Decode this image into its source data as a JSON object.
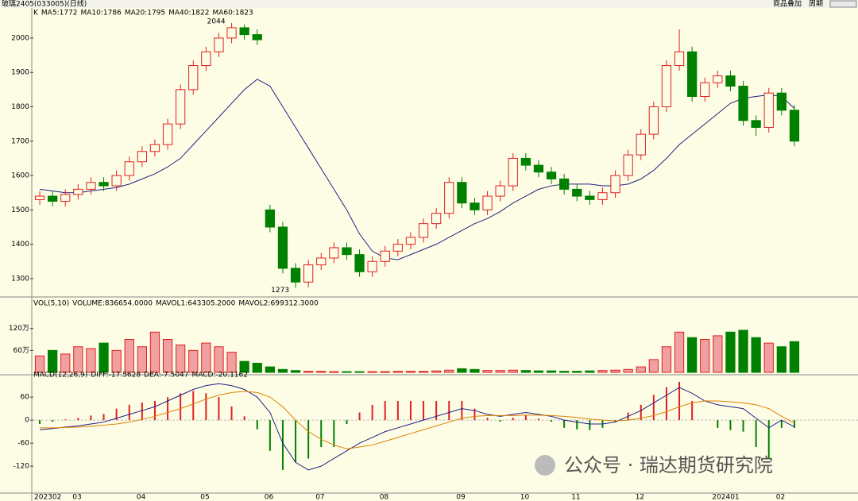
{
  "header": {
    "title": "玻璃2405(033005)(日线)",
    "buttons": [
      "商品叠加",
      "周期"
    ]
  },
  "watermark": "公众号 · 瑞达期货研究院",
  "chart_data": [
    {
      "type": "candlestick",
      "indicator_labels": [
        {
          "text": "K",
          "color": "#000000"
        },
        {
          "text": "MA5:1772",
          "color": "#000000"
        },
        {
          "text": "MA10:1786",
          "color": "#e08000"
        },
        {
          "text": "MA20:1795",
          "color": "#202080"
        },
        {
          "text": "MA40:1822",
          "color": "#2020e0"
        },
        {
          "text": "MA60:1823",
          "color": "#e080e0"
        }
      ],
      "open": [
        1530,
        1540,
        1525,
        1545,
        1560,
        1580,
        1570,
        1600,
        1640,
        1670,
        1690,
        1750,
        1850,
        1920,
        1960,
        2000,
        2030,
        2010,
        1500,
        1450,
        1330,
        1290,
        1340,
        1360,
        1390,
        1370,
        1320,
        1350,
        1380,
        1400,
        1420,
        1460,
        1490,
        1580,
        1520,
        1500,
        1540,
        1570,
        1650,
        1630,
        1610,
        1590,
        1560,
        1540,
        1530,
        1550,
        1600,
        1660,
        1720,
        1800,
        1920,
        1960,
        1830,
        1870,
        1890,
        1860,
        1760,
        1740,
        1840,
        1790
      ],
      "high": [
        1555,
        1555,
        1560,
        1575,
        1595,
        1595,
        1615,
        1655,
        1685,
        1705,
        1765,
        1865,
        1935,
        1975,
        2015,
        2044,
        2040,
        2025,
        1515,
        1465,
        1345,
        1355,
        1375,
        1405,
        1405,
        1385,
        1365,
        1395,
        1415,
        1435,
        1475,
        1505,
        1595,
        1595,
        1535,
        1555,
        1585,
        1665,
        1665,
        1645,
        1625,
        1605,
        1575,
        1555,
        1565,
        1615,
        1675,
        1735,
        1815,
        1935,
        2025,
        1975,
        1885,
        1905,
        1905,
        1875,
        1775,
        1855,
        1855,
        1805
      ],
      "low": [
        1515,
        1510,
        1510,
        1530,
        1545,
        1555,
        1555,
        1585,
        1625,
        1655,
        1675,
        1735,
        1835,
        1905,
        1945,
        1985,
        1995,
        1980,
        1435,
        1315,
        1273,
        1275,
        1325,
        1345,
        1355,
        1305,
        1305,
        1335,
        1365,
        1385,
        1405,
        1445,
        1475,
        1505,
        1485,
        1485,
        1525,
        1555,
        1615,
        1595,
        1575,
        1545,
        1525,
        1515,
        1515,
        1535,
        1585,
        1645,
        1705,
        1785,
        1905,
        1815,
        1815,
        1855,
        1845,
        1745,
        1715,
        1725,
        1775,
        1685
      ],
      "close": [
        1540,
        1525,
        1545,
        1560,
        1580,
        1570,
        1600,
        1640,
        1670,
        1690,
        1750,
        1850,
        1920,
        1960,
        2000,
        2030,
        2010,
        1995,
        1450,
        1330,
        1290,
        1340,
        1360,
        1390,
        1370,
        1320,
        1350,
        1380,
        1400,
        1420,
        1460,
        1490,
        1580,
        1520,
        1500,
        1540,
        1570,
        1650,
        1630,
        1610,
        1590,
        1560,
        1540,
        1530,
        1550,
        1600,
        1660,
        1720,
        1800,
        1920,
        1960,
        1830,
        1870,
        1890,
        1860,
        1760,
        1740,
        1840,
        1790,
        1700
      ],
      "up_color": "#e02020",
      "down_color": "#008000",
      "lines": [
        {
          "color": "#202080",
          "values": [
            1560,
            1555,
            1550,
            1550,
            1555,
            1560,
            1565,
            1575,
            1590,
            1605,
            1625,
            1650,
            1690,
            1730,
            1770,
            1810,
            1850,
            1880,
            1860,
            1800,
            1740,
            1680,
            1620,
            1560,
            1500,
            1430,
            1380,
            1360,
            1355,
            1370,
            1385,
            1400,
            1420,
            1440,
            1460,
            1475,
            1495,
            1520,
            1540,
            1560,
            1570,
            1575,
            1575,
            1575,
            1570,
            1570,
            1575,
            1590,
            1615,
            1650,
            1690,
            1720,
            1750,
            1780,
            1810,
            1825,
            1830,
            1835,
            1830,
            1795
          ]
        }
      ],
      "annotations": [
        "2044",
        "1273"
      ],
      "ylim": [
        1249,
        2083
      ],
      "yticks": [
        1300,
        1400,
        1500,
        1600,
        1700,
        1800,
        1900,
        2000
      ]
    },
    {
      "type": "bar",
      "indicator_labels": [
        {
          "text": "VOL(5,10)",
          "color": "#000000"
        },
        {
          "text": "VOLUME:836654.0000",
          "color": "#000000"
        },
        {
          "text": "MAVOL1:643305.2000",
          "color": "#202080"
        },
        {
          "text": "MAVOL2:699312.3000",
          "color": "#e08000"
        }
      ],
      "values": [
        45,
        60,
        50,
        70,
        65,
        80,
        60,
        90,
        70,
        110,
        90,
        75,
        60,
        80,
        70,
        55,
        30,
        25,
        15,
        8,
        5,
        3,
        3,
        2,
        2,
        2,
        2,
        2,
        3,
        3,
        3,
        4,
        6,
        10,
        8,
        5,
        5,
        6,
        5,
        4,
        4,
        3,
        3,
        4,
        5,
        6,
        8,
        15,
        35,
        70,
        110,
        95,
        90,
        100,
        110,
        115,
        95,
        80,
        70,
        84
      ],
      "ylim": [
        0,
        180
      ],
      "yticks": [
        {
          "value": 60,
          "label": "60万"
        },
        {
          "value": 120,
          "label": "120万"
        }
      ]
    },
    {
      "type": "macd",
      "indicator_labels": [
        {
          "text": "MACD(12,26,9)",
          "color": "#000000"
        },
        {
          "text": "DIFF:-17.5628",
          "color": "#202080"
        },
        {
          "text": "DEA:-7.5047",
          "color": "#e08000"
        },
        {
          "text": "MACD:-20.1162",
          "color": "#000000"
        }
      ],
      "categories": [
        "202302",
        null,
        null,
        "03",
        null,
        null,
        null,
        null,
        "04",
        null,
        null,
        null,
        null,
        "05",
        null,
        null,
        null,
        null,
        "06",
        null,
        null,
        null,
        "07",
        null,
        null,
        null,
        null,
        "08",
        null,
        null,
        null,
        null,
        null,
        "09",
        null,
        null,
        null,
        null,
        "10",
        null,
        null,
        null,
        "11",
        null,
        null,
        null,
        null,
        "12",
        null,
        null,
        null,
        null,
        null,
        "202401",
        null,
        null,
        null,
        null,
        "02",
        null
      ],
      "histogram": [
        -10,
        -4,
        2,
        6,
        12,
        16,
        30,
        40,
        46,
        50,
        60,
        70,
        76,
        70,
        60,
        36,
        10,
        -24,
        -80,
        -130,
        -110,
        -100,
        -70,
        -70,
        -10,
        20,
        40,
        50,
        50,
        50,
        50,
        50,
        50,
        50,
        30,
        6,
        -4,
        6,
        14,
        4,
        -4,
        -20,
        -24,
        -26,
        -20,
        -6,
        20,
        40,
        66,
        86,
        100,
        50,
        0,
        -20,
        -26,
        -30,
        -70,
        -100,
        -20,
        -20.1162
      ],
      "diff": [
        -25,
        -22,
        -18,
        -15,
        -10,
        -5,
        5,
        15,
        25,
        35,
        50,
        65,
        80,
        90,
        95,
        90,
        80,
        60,
        20,
        -60,
        -110,
        -130,
        -120,
        -100,
        -80,
        -60,
        -45,
        -30,
        -20,
        -10,
        0,
        10,
        20,
        30,
        25,
        15,
        10,
        15,
        20,
        15,
        10,
        0,
        -5,
        -10,
        -10,
        -5,
        10,
        25,
        45,
        65,
        85,
        70,
        50,
        40,
        35,
        30,
        5,
        -20,
        0,
        -17.5628
      ],
      "dea": [
        -20,
        -20,
        -19,
        -18,
        -16,
        -13,
        -10,
        -5,
        2,
        10,
        20,
        30,
        42,
        55,
        65,
        72,
        75,
        72,
        60,
        35,
        0,
        -30,
        -50,
        -65,
        -75,
        -70,
        -65,
        -55,
        -45,
        -35,
        -25,
        -15,
        -5,
        5,
        10,
        12,
        12,
        12,
        13,
        13,
        12,
        10,
        7,
        3,
        0,
        -2,
        0,
        5,
        12,
        22,
        35,
        45,
        50,
        50,
        48,
        45,
        40,
        30,
        10,
        -7.5047
      ],
      "diff_color": "#202080",
      "dea_color": "#e08000",
      "up_color": "#e02020",
      "down_color": "#008000",
      "ylim": [
        -188,
        110
      ],
      "yticks": [
        60,
        0,
        -60,
        -120
      ]
    }
  ]
}
